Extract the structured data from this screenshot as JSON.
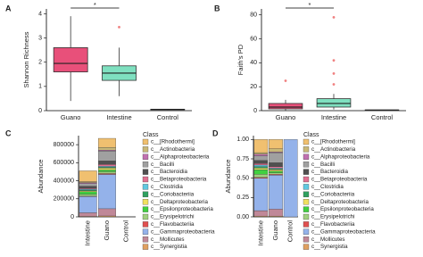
{
  "chart_data": [
    {
      "type": "box",
      "panel": "A",
      "ylabel": "Shannon Richness",
      "categories": [
        "Guano",
        "Intestine",
        "Control"
      ],
      "colors": [
        "#e8507a",
        "#7fe0c0",
        "#a0b0e0"
      ],
      "boxes": [
        {
          "low": 0.4,
          "q1": 1.6,
          "median": 1.95,
          "q3": 2.6,
          "high": 3.9,
          "outliers": []
        },
        {
          "low": 0.6,
          "q1": 1.25,
          "median": 1.55,
          "q3": 1.85,
          "high": 2.6,
          "outliers": [
            3.45
          ]
        },
        {
          "low": 0.03,
          "q1": 0.04,
          "median": 0.05,
          "q3": 0.06,
          "high": 0.07,
          "outliers": []
        }
      ],
      "annotation": "*",
      "ylim": [
        0,
        4.2
      ],
      "yticks": [
        0,
        1,
        2,
        3,
        4
      ],
      "outlier_color": "#f08080"
    },
    {
      "type": "box",
      "panel": "B",
      "ylabel": "Faith's PD",
      "categories": [
        "Guano",
        "Intestine",
        "Control"
      ],
      "colors": [
        "#e8507a",
        "#7fe0c0",
        "#a0b0e0"
      ],
      "boxes": [
        {
          "low": 0,
          "q1": 1.5,
          "median": 3,
          "q3": 6,
          "high": 9,
          "outliers": [
            25
          ]
        },
        {
          "low": 1,
          "q1": 3,
          "median": 6,
          "q3": 10,
          "high": 14,
          "outliers": [
            22,
            31,
            42,
            78
          ]
        },
        {
          "low": 0.3,
          "q1": 0.4,
          "median": 0.5,
          "q3": 0.6,
          "high": 0.7,
          "outliers": []
        }
      ],
      "annotation": "*",
      "ylim": [
        0,
        85
      ],
      "yticks": [
        0,
        20,
        40,
        60,
        80
      ],
      "outlier_color": "#f08080"
    },
    {
      "type": "stacked_bar",
      "panel": "C",
      "ylabel": "Abundance",
      "legend_title": "Class",
      "categories": [
        "Intestine",
        "Guano",
        "Control"
      ],
      "ylim": [
        0,
        900000
      ],
      "yticks": [
        0,
        200000,
        400000,
        600000,
        800000
      ],
      "series": [
        {
          "name": "c__[Rhodothermi]",
          "color": "#f0c070",
          "values": [
            120000,
            100000,
            0
          ]
        },
        {
          "name": "c__Actinobacteria",
          "color": "#c8b878",
          "values": [
            10000,
            30000,
            0
          ]
        },
        {
          "name": "c__Alphaproteobacteria",
          "color": "#c070b0",
          "values": [
            10000,
            10000,
            0
          ]
        },
        {
          "name": "c__Bacilli",
          "color": "#a0a0a0",
          "values": [
            30000,
            110000,
            0
          ]
        },
        {
          "name": "c__Bacteroidia",
          "color": "#505050",
          "values": [
            20000,
            40000,
            0
          ]
        },
        {
          "name": "c__Betaproteobacteria",
          "color": "#e07090",
          "values": [
            10000,
            20000,
            0
          ]
        },
        {
          "name": "c__Clostridia",
          "color": "#60c8e0",
          "values": [
            10000,
            10000,
            0
          ]
        },
        {
          "name": "c__Coriobacteriia",
          "color": "#30a060",
          "values": [
            10000,
            10000,
            0
          ]
        },
        {
          "name": "c__Deltaproteobacteria",
          "color": "#f0e060",
          "values": [
            10000,
            20000,
            0
          ]
        },
        {
          "name": "c__Epsilonproteobacteria",
          "color": "#40d040",
          "values": [
            30000,
            20000,
            0
          ]
        },
        {
          "name": "c__Erysipelotrichi",
          "color": "#a0d080",
          "values": [
            20000,
            20000,
            0
          ]
        },
        {
          "name": "c__Flavobacteriia",
          "color": "#e05050",
          "values": [
            5000,
            10000,
            0
          ]
        },
        {
          "name": "c__Gammaproteobacteria",
          "color": "#94b2ea",
          "values": [
            180000,
            380000,
            0
          ]
        },
        {
          "name": "c__Mollicutes",
          "color": "#c08898",
          "values": [
            40000,
            80000,
            0
          ]
        },
        {
          "name": "c__Synergistia",
          "color": "#e0a060",
          "values": [
            5000,
            10000,
            0
          ]
        }
      ]
    },
    {
      "type": "stacked_bar",
      "panel": "D",
      "ylabel": "Abundance",
      "legend_title": "Class",
      "categories": [
        "Intestine",
        "Guano",
        "Control"
      ],
      "ylim": [
        0,
        1.05
      ],
      "yticks": [
        {
          "value": 0,
          "label": "0.00"
        },
        {
          "value": 0.25,
          "label": "0.25"
        },
        {
          "value": 0.5,
          "label": "0.50"
        },
        {
          "value": 0.75,
          "label": "0.75"
        },
        {
          "value": 1,
          "label": "1.00"
        }
      ],
      "series": [
        {
          "name": "c__[Rhodothermi]",
          "color": "#f0c070",
          "values": [
            0.17,
            0.12,
            0
          ]
        },
        {
          "name": "c__Actinobacteria",
          "color": "#c8b878",
          "values": [
            0.02,
            0.04,
            0
          ]
        },
        {
          "name": "c__Alphaproteobacteria",
          "color": "#c070b0",
          "values": [
            0.02,
            0.01,
            0
          ]
        },
        {
          "name": "c__Bacilli",
          "color": "#a0a0a0",
          "values": [
            0.06,
            0.13,
            0
          ]
        },
        {
          "name": "c__Bacteroidia",
          "color": "#505050",
          "values": [
            0.04,
            0.05,
            0
          ]
        },
        {
          "name": "c__Betaproteobacteria",
          "color": "#e07090",
          "values": [
            0.02,
            0.02,
            0
          ]
        },
        {
          "name": "c__Clostridia",
          "color": "#60c8e0",
          "values": [
            0.02,
            0.01,
            0
          ]
        },
        {
          "name": "c__Coriobacteriia",
          "color": "#30a060",
          "values": [
            0.02,
            0.01,
            0
          ]
        },
        {
          "name": "c__Deltaproteobacteria",
          "color": "#f0e060",
          "values": [
            0.02,
            0.02,
            0
          ]
        },
        {
          "name": "c__Epsilonproteobacteria",
          "color": "#40d040",
          "values": [
            0.06,
            0.02,
            0
          ]
        },
        {
          "name": "c__Erysipelotrichi",
          "color": "#a0d080",
          "values": [
            0.04,
            0.02,
            0
          ]
        },
        {
          "name": "c__Flavobacteriia",
          "color": "#e05050",
          "values": [
            0.01,
            0.01,
            0
          ]
        },
        {
          "name": "c__Gammaproteobacteria",
          "color": "#94b2ea",
          "values": [
            0.42,
            0.44,
            1
          ]
        },
        {
          "name": "c__Mollicutes",
          "color": "#c08898",
          "values": [
            0.07,
            0.09,
            0
          ]
        },
        {
          "name": "c__Synergistia",
          "color": "#e0a060",
          "values": [
            0.01,
            0.01,
            0
          ]
        }
      ]
    }
  ]
}
